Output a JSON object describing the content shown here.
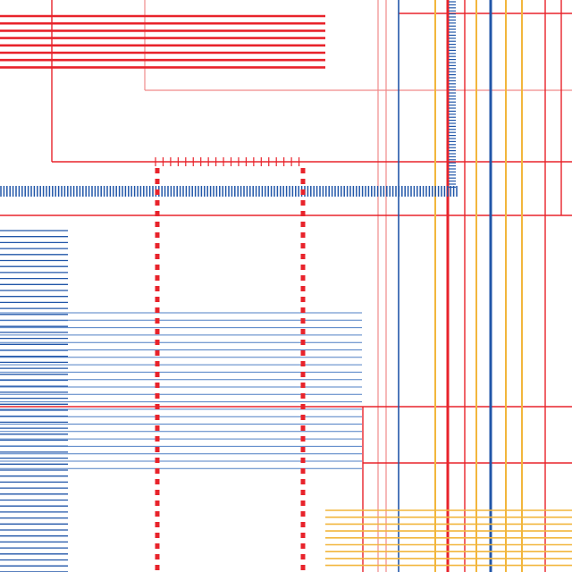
{
  "artwork": {
    "background": "#ffffff",
    "colors": {
      "red": "#e8232b",
      "light_red": "#f08a8a",
      "blue": "#2156a8",
      "light_blue": "#4f7fc4",
      "yellow": "#f2b63c"
    }
  }
}
